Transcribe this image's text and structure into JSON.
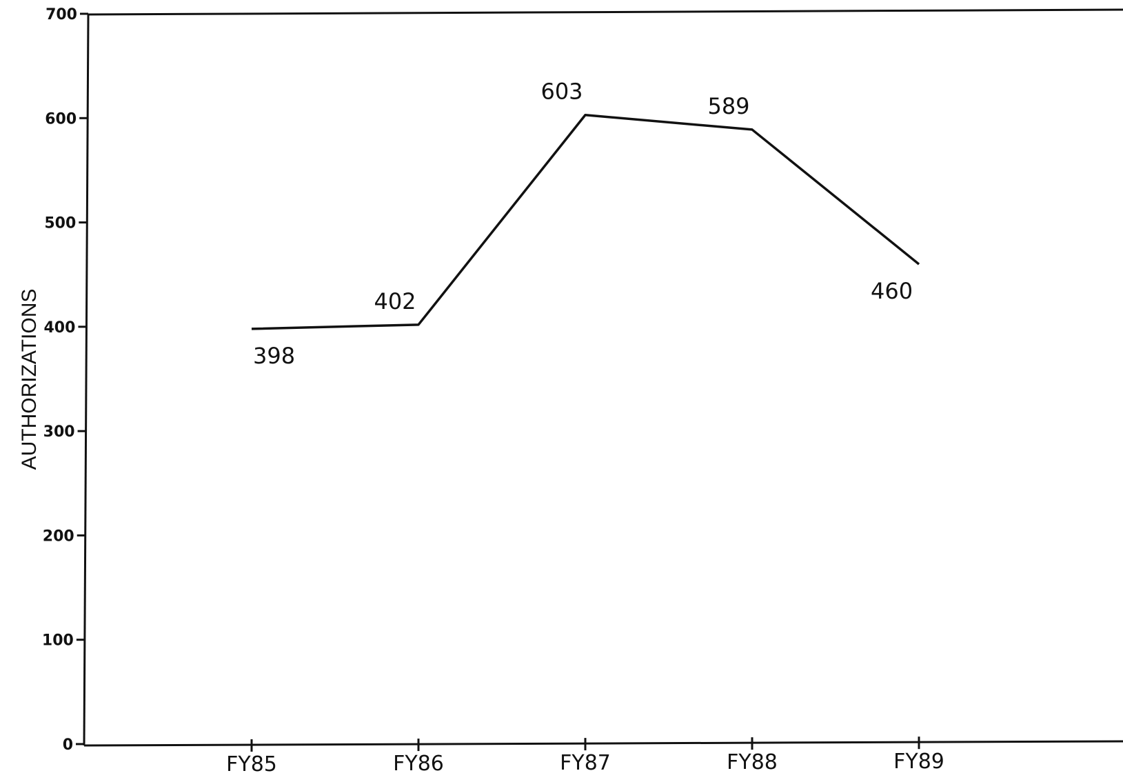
{
  "chart_data": {
    "type": "line",
    "title": "",
    "xlabel": "",
    "ylabel": "AUTHORIZATIONS",
    "categories": [
      "FY85",
      "FY86",
      "FY87",
      "FY88",
      "FY89"
    ],
    "values": [
      398,
      402,
      603,
      589,
      460
    ],
    "data_labels": [
      "398",
      "402",
      "603",
      "589",
      "460"
    ],
    "ylim": [
      0,
      700
    ],
    "yticks": [
      0,
      100,
      200,
      300,
      400,
      500,
      600,
      700
    ],
    "grid": false,
    "legend": "none",
    "line_color": "#111111"
  }
}
